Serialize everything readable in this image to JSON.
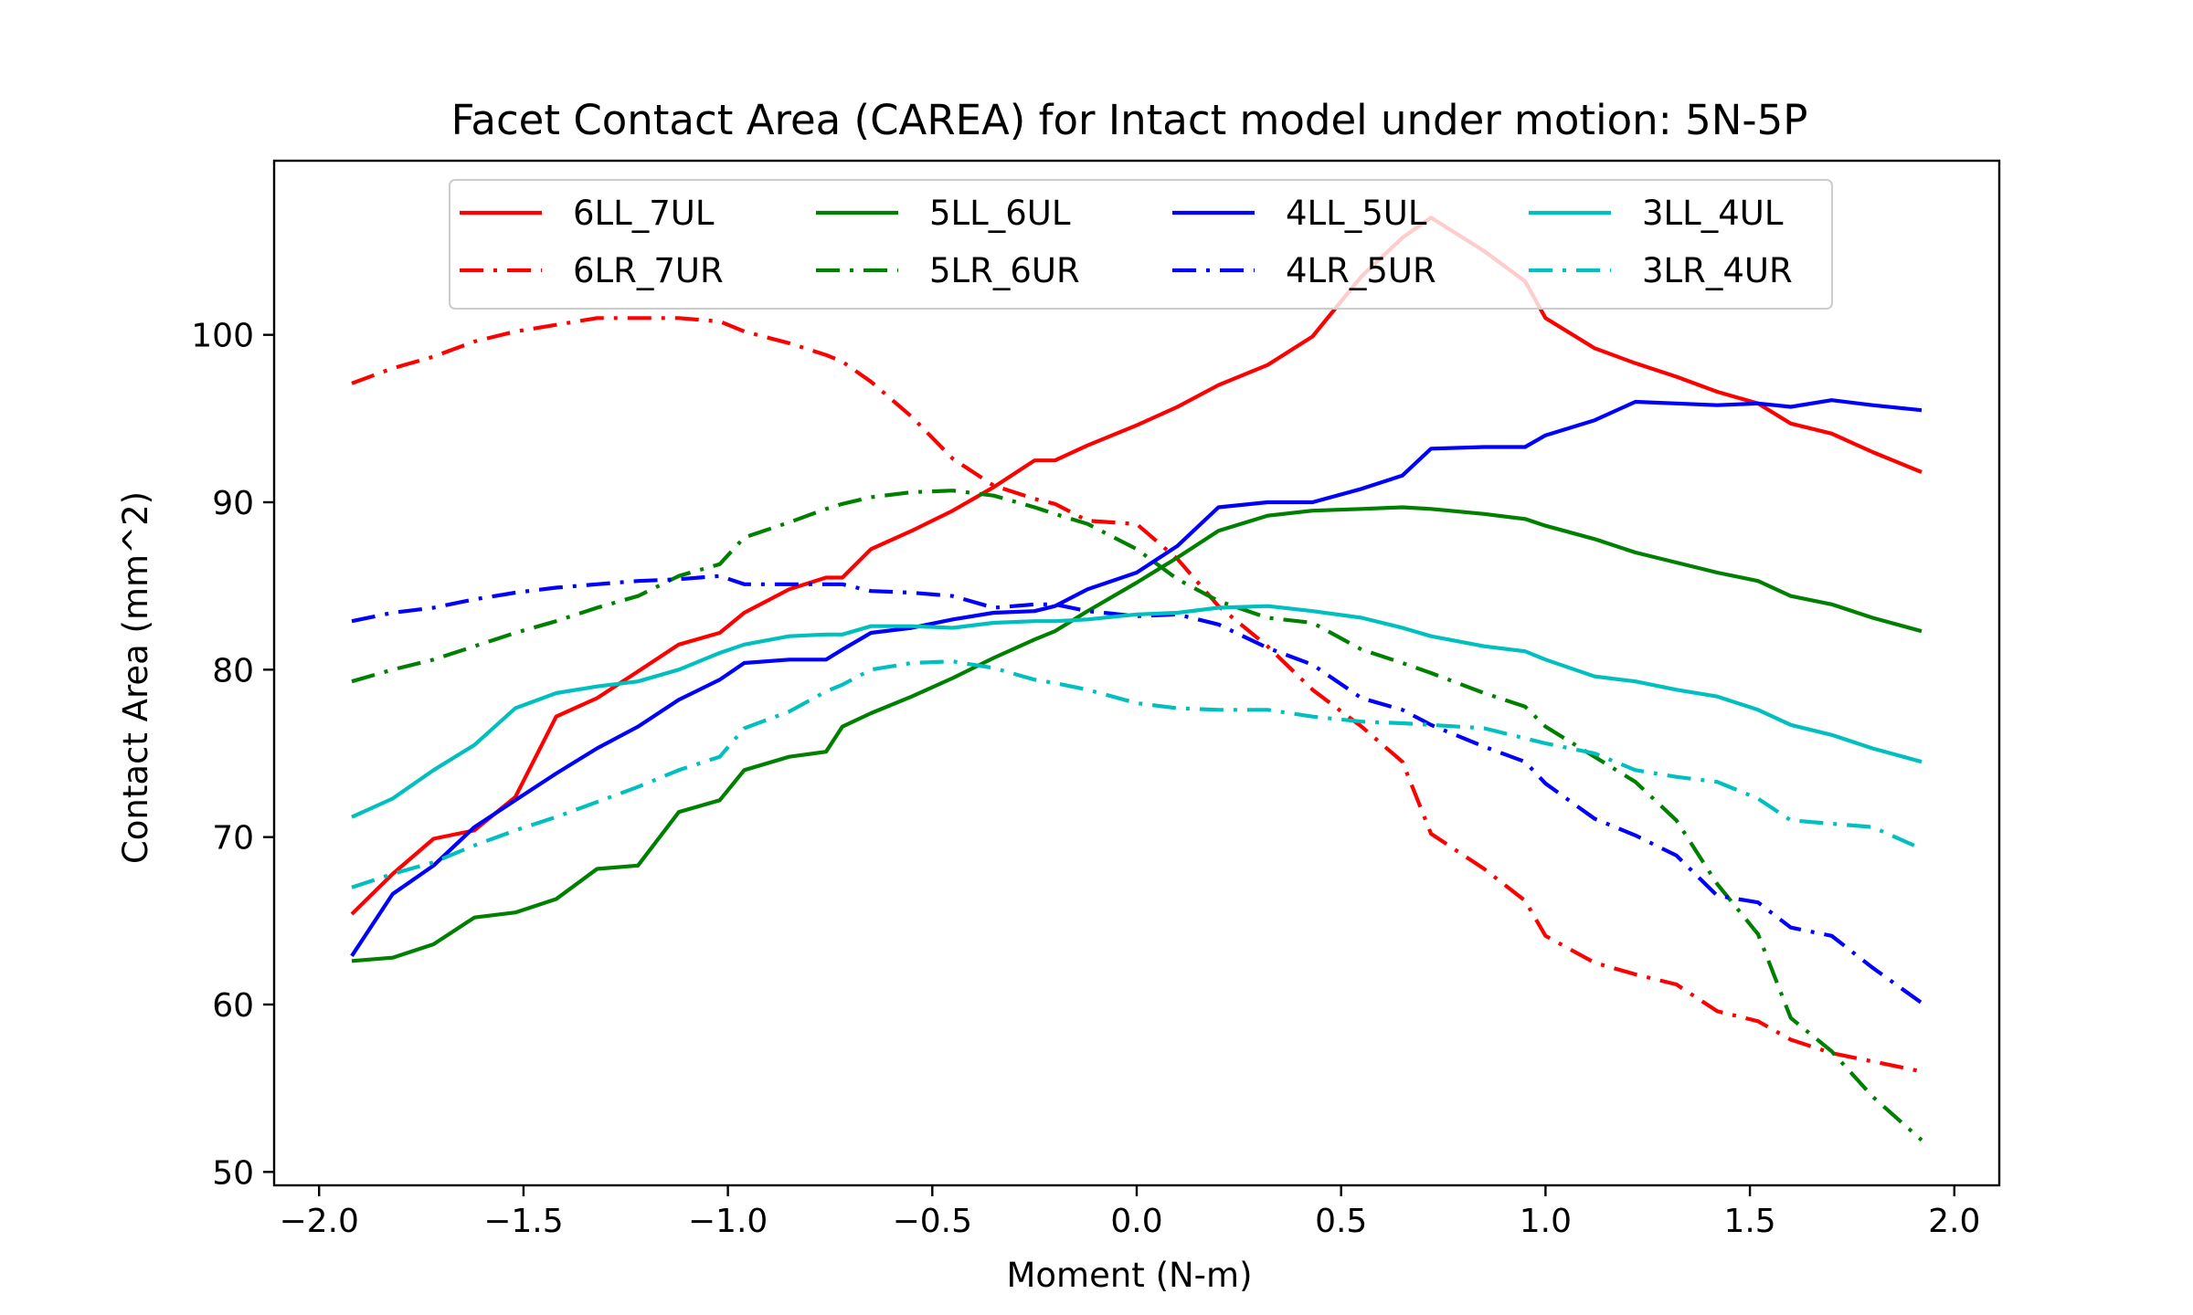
{
  "chart_data": {
    "type": "line",
    "title": "Facet Contact Area (CAREA) for Intact model under motion: 5N-5P",
    "xlabel": "Moment (N-m)",
    "ylabel": "Contact Area (mm^2)",
    "xlim": [
      -2.11,
      2.11
    ],
    "ylim": [
      49.2,
      110.4
    ],
    "xticks": [
      -2.0,
      -1.5,
      -1.0,
      -0.5,
      0.0,
      0.5,
      1.0,
      1.5,
      2.0
    ],
    "xtick_labels": [
      "−2.0",
      "−1.5",
      "−1.0",
      "−0.5",
      "0.0",
      "0.5",
      "1.0",
      "1.5",
      "2.0"
    ],
    "yticks": [
      50,
      60,
      70,
      80,
      90,
      100
    ],
    "ytick_labels": [
      "50",
      "60",
      "70",
      "80",
      "90",
      "100"
    ],
    "grid": false,
    "legend_placement": "upper center",
    "legend_columns": 4,
    "x": [
      -1.92,
      -1.82,
      -1.72,
      -1.62,
      -1.52,
      -1.42,
      -1.32,
      -1.22,
      -1.12,
      -1.02,
      -0.96,
      -0.85,
      -0.76,
      -0.72,
      -0.65,
      -0.55,
      -0.45,
      -0.35,
      -0.25,
      -0.2,
      -0.12,
      0.0,
      0.1,
      0.2,
      0.32,
      0.43,
      0.55,
      0.65,
      0.72,
      0.85,
      0.95,
      1.0,
      1.12,
      1.22,
      1.32,
      1.42,
      1.52,
      1.6,
      1.7,
      1.8,
      1.92
    ],
    "series": [
      {
        "name": "6LL_7UL",
        "color": "#ff0000",
        "style": "solid",
        "values": [
          65.4,
          67.8,
          69.9,
          70.4,
          72.4,
          77.2,
          78.3,
          79.9,
          81.5,
          82.2,
          83.4,
          84.8,
          85.5,
          85.5,
          87.2,
          88.3,
          89.5,
          90.9,
          92.5,
          92.5,
          93.4,
          94.6,
          95.7,
          97.0,
          98.2,
          99.9,
          103.5,
          105.8,
          107.0,
          105.0,
          103.2,
          101.0,
          99.2,
          98.3,
          97.5,
          96.6,
          95.9,
          94.7,
          94.1,
          93.0,
          91.8
        ]
      },
      {
        "name": "6LR_7UR",
        "color": "#ff0000",
        "style": "dashdot",
        "values": [
          97.1,
          98.0,
          98.7,
          99.6,
          100.2,
          100.6,
          101.0,
          101.0,
          101.0,
          100.8,
          100.2,
          99.5,
          98.8,
          98.4,
          97.2,
          95.1,
          92.6,
          91.0,
          90.2,
          89.9,
          88.9,
          88.7,
          86.6,
          83.8,
          81.4,
          78.8,
          76.6,
          74.5,
          70.2,
          68.1,
          66.2,
          64.1,
          62.5,
          61.8,
          61.2,
          59.6,
          59.0,
          57.9,
          57.1,
          56.6,
          56.0
        ]
      },
      {
        "name": "5LL_6UL",
        "color": "#008000",
        "style": "solid",
        "values": [
          62.6,
          62.8,
          63.6,
          65.2,
          65.5,
          66.3,
          68.1,
          68.3,
          71.5,
          72.2,
          74.0,
          74.8,
          75.1,
          76.6,
          77.4,
          78.4,
          79.5,
          80.7,
          81.8,
          82.3,
          83.5,
          85.2,
          86.7,
          88.3,
          89.2,
          89.5,
          89.6,
          89.7,
          89.6,
          89.3,
          89.0,
          88.6,
          87.8,
          87.0,
          86.4,
          85.8,
          85.3,
          84.4,
          83.9,
          83.1,
          82.3
        ]
      },
      {
        "name": "5LR_6UR",
        "color": "#008000",
        "style": "dashdot",
        "values": [
          79.3,
          80.0,
          80.6,
          81.4,
          82.2,
          82.9,
          83.7,
          84.4,
          85.6,
          86.3,
          87.9,
          88.8,
          89.6,
          89.9,
          90.3,
          90.6,
          90.7,
          90.4,
          89.7,
          89.3,
          88.7,
          87.2,
          85.4,
          84.1,
          83.1,
          82.8,
          81.2,
          80.4,
          79.8,
          78.6,
          77.8,
          76.6,
          74.8,
          73.3,
          71.0,
          67.2,
          64.2,
          59.2,
          57.2,
          54.5,
          51.9
        ]
      },
      {
        "name": "4LL_5UL",
        "color": "#0000ff",
        "style": "solid",
        "values": [
          62.9,
          66.6,
          68.3,
          70.6,
          72.2,
          73.8,
          75.3,
          76.6,
          78.2,
          79.4,
          80.4,
          80.6,
          80.6,
          81.2,
          82.2,
          82.5,
          83.0,
          83.4,
          83.5,
          83.8,
          84.8,
          85.8,
          87.4,
          89.7,
          90.0,
          90.0,
          90.8,
          91.6,
          93.2,
          93.3,
          93.3,
          94.0,
          94.9,
          96.0,
          95.9,
          95.8,
          95.9,
          95.7,
          96.1,
          95.8,
          95.5
        ]
      },
      {
        "name": "4LR_5UR",
        "color": "#0000ff",
        "style": "dashdot",
        "values": [
          82.9,
          83.4,
          83.7,
          84.2,
          84.6,
          84.9,
          85.1,
          85.3,
          85.4,
          85.6,
          85.1,
          85.1,
          85.1,
          85.1,
          84.7,
          84.6,
          84.4,
          83.7,
          83.9,
          83.9,
          83.5,
          83.2,
          83.3,
          82.7,
          81.3,
          80.3,
          78.3,
          77.6,
          76.7,
          75.4,
          74.5,
          73.2,
          71.1,
          70.1,
          68.9,
          66.5,
          66.1,
          64.6,
          64.1,
          62.2,
          60.1
        ]
      },
      {
        "name": "3LL_4UL",
        "color": "#00bfbf",
        "style": "solid",
        "values": [
          71.2,
          72.3,
          74.0,
          75.5,
          77.7,
          78.6,
          79.0,
          79.3,
          80.0,
          81.0,
          81.5,
          82.0,
          82.1,
          82.1,
          82.6,
          82.6,
          82.5,
          82.8,
          82.9,
          82.9,
          83.0,
          83.3,
          83.4,
          83.7,
          83.8,
          83.5,
          83.1,
          82.5,
          82.0,
          81.4,
          81.1,
          80.6,
          79.6,
          79.3,
          78.8,
          78.4,
          77.6,
          76.7,
          76.1,
          75.3,
          74.5
        ]
      },
      {
        "name": "3LR_4UR",
        "color": "#00bfbf",
        "style": "dashdot",
        "values": [
          67.0,
          67.8,
          68.5,
          69.5,
          70.4,
          71.2,
          72.1,
          73.0,
          74.0,
          74.8,
          76.5,
          77.5,
          78.7,
          79.1,
          80.0,
          80.4,
          80.5,
          80.1,
          79.4,
          79.2,
          78.8,
          78.0,
          77.7,
          77.6,
          77.6,
          77.2,
          76.9,
          76.8,
          76.7,
          76.5,
          75.9,
          75.6,
          75.0,
          74.0,
          73.6,
          73.3,
          72.3,
          71.0,
          70.8,
          70.6,
          69.3
        ]
      }
    ]
  }
}
